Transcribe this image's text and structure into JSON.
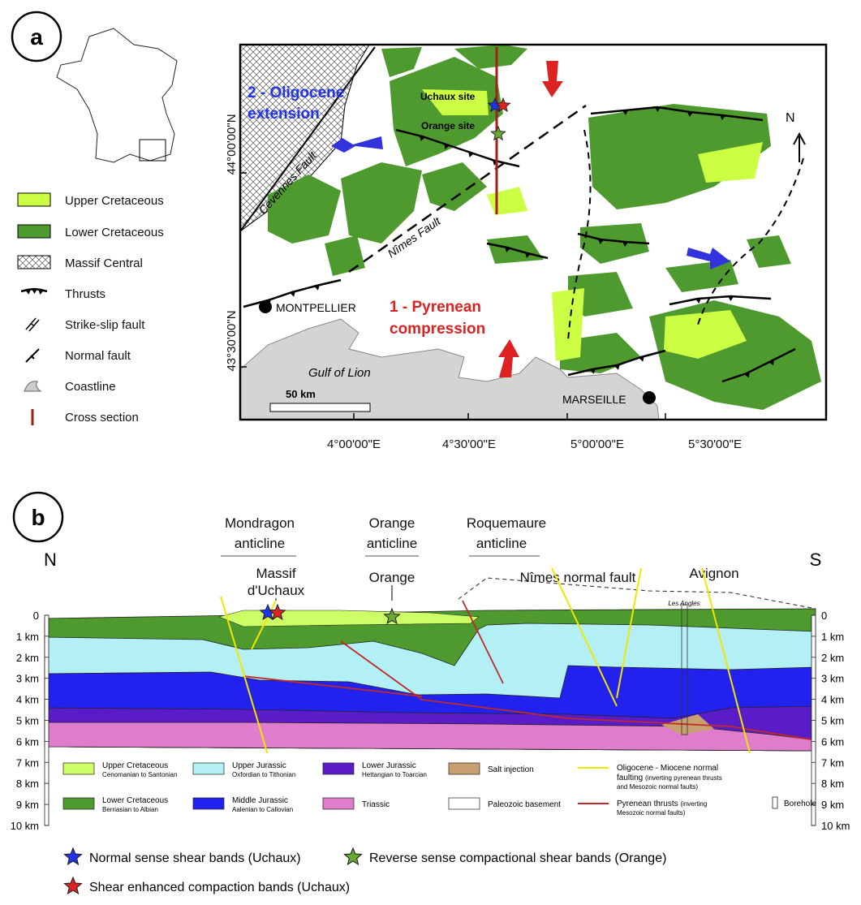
{
  "panel_a": {
    "label": "a",
    "legend": [
      "Upper Cretaceous",
      "Lower Cretaceous",
      "Massif Central",
      "Thrusts",
      "Strike-slip fault",
      "Normal fault",
      "Coastline",
      "Cross section"
    ],
    "map": {
      "extension": [
        "2 - Oligocene",
        "extension"
      ],
      "uchaux_site": "Uchaux site",
      "orange_site": "Orange site",
      "cevennes_fault": "Cevennes Fault",
      "nimes_fault": "Nîmes Fault",
      "montpellier": "MONTPELLIER",
      "compression": [
        "1 - Pyrenean",
        "compression"
      ],
      "gulf": "Gulf of Lion",
      "scale": "50 km",
      "marseille": "MARSEILLE",
      "north": "N",
      "latitudes": [
        "44°00'00\"N",
        "43°30'00\"N"
      ],
      "longitudes": [
        "4°00'00\"E",
        "4°30'00\"E",
        "5°00'00\"E",
        "5°30'00\"E"
      ]
    }
  },
  "panel_b": {
    "label": "b",
    "anticlines": [
      [
        "Mondragon",
        "anticline"
      ],
      [
        "Orange",
        "anticline"
      ],
      [
        "Roquemaure",
        "anticline"
      ]
    ],
    "north": "N",
    "south": "S",
    "places": {
      "massif": [
        "Massif",
        "d'Uchaux"
      ],
      "orange": "Orange",
      "nimes": "Nîmes normal fault",
      "avignon": "Avignon",
      "les_angles": "Les Angles"
    },
    "depths": [
      "0",
      "1 km",
      "2 km",
      "3 km",
      "4 km",
      "5 km",
      "6 km",
      "7 km",
      "8 km",
      "9 km",
      "10 km"
    ],
    "legend": {
      "upper_cretaceous": {
        "title": "Upper Cretaceous",
        "note": "Cenomanian to Santonian"
      },
      "lower_cretaceous": {
        "title": "Lower Cretaceous",
        "note": "Berriasian to Albian"
      },
      "upper_jurassic": {
        "title": "Upper Jurassic",
        "note": "Oxfordian to Tithonian"
      },
      "middle_jurassic": {
        "title": "Middle Jurassic",
        "note": "Aalenian to Callovian"
      },
      "lower_jurassic": {
        "title": "Lower Jurassic",
        "note": "Hettangian to Toarcian"
      },
      "triassic": {
        "title": "Triassic"
      },
      "salt": {
        "title": "Salt injection"
      },
      "basement": {
        "title": "Paleozoic basement"
      },
      "normal_faulting": {
        "title_lines": [
          "Oligocene - Miocene normal",
          "faulting"
        ],
        "note_lines": [
          "(inverting pyrenean thrusts",
          "and Mesozoic normal faults)"
        ]
      },
      "thrusts": {
        "title": "Pyrenean thrusts",
        "note_lines": [
          "(inverting",
          "Mesozoic normal faults)"
        ]
      },
      "borehole": {
        "title": "Borehole"
      }
    },
    "stars": [
      "Normal sense shear bands (Uchaux)",
      "Reverse sense compactional shear bands (Orange)",
      "Shear enhanced compaction bands (Uchaux)"
    ]
  }
}
